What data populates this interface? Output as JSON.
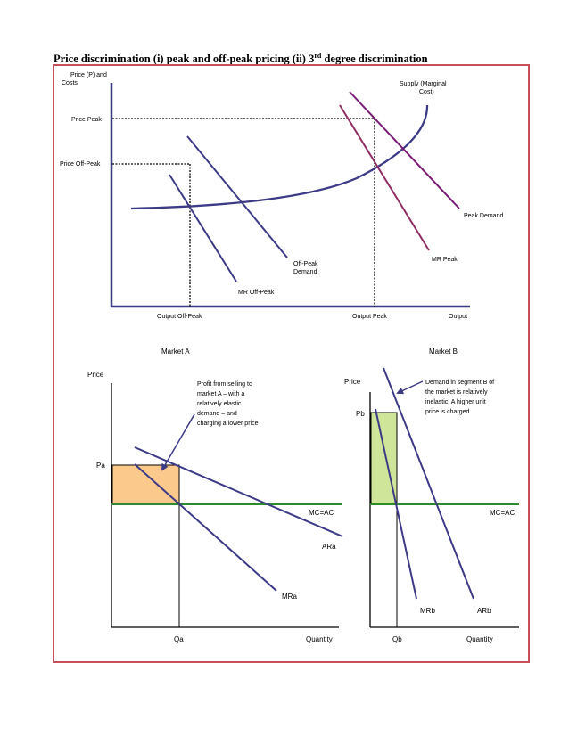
{
  "title": {
    "main": "Price discrimination (i) peak and off-peak pricing (ii) 3",
    "sup": "rd",
    "tail": " degree discrimination"
  },
  "colors": {
    "border": "#c9505a",
    "navy": "#3d3a86",
    "maroon": "#8e2e63",
    "purple": "#7a1d74",
    "green": "#2e8a2e",
    "orange": "#fcc98d",
    "lightgreen": "#cfe59a"
  },
  "top_chart": {
    "y_label": [
      "Price (P) and",
      "Costs"
    ],
    "price_peak": "Price Peak",
    "price_off_peak": "Price Off-Peak",
    "supply_label": [
      "Supply (Marginal",
      "Cost)"
    ],
    "peak_demand": "Peak Demand",
    "mr_peak": "MR Peak",
    "off_peak_demand": [
      "Off-Peak",
      "Demand"
    ],
    "mr_off_peak": "MR Off-Peak",
    "output_off_peak": "Output Off-Peak",
    "output_peak": "Output Peak",
    "output": "Output"
  },
  "market_a": {
    "title": "Market A",
    "price_label": "Price",
    "pa": "Pa",
    "annotation": [
      "Profit from selling to",
      "market A – with a",
      "relatively elastic",
      "demand – and",
      "charging a lower price"
    ],
    "mc_ac": "MC=AC",
    "ar": "ARa",
    "mr": "MRa",
    "qa": "Qa",
    "quantity": "Quantity"
  },
  "market_b": {
    "title": "Market B",
    "price_label": "Price",
    "pb": "Pb",
    "annotation": [
      "Demand in segment B of",
      "the market is relatively",
      "inelastic. A higher unit",
      "price is charged"
    ],
    "mc_ac": "MC=AC",
    "mr": "MRb",
    "ar": "ARb",
    "qb": "Qb",
    "quantity": "Quantity"
  }
}
